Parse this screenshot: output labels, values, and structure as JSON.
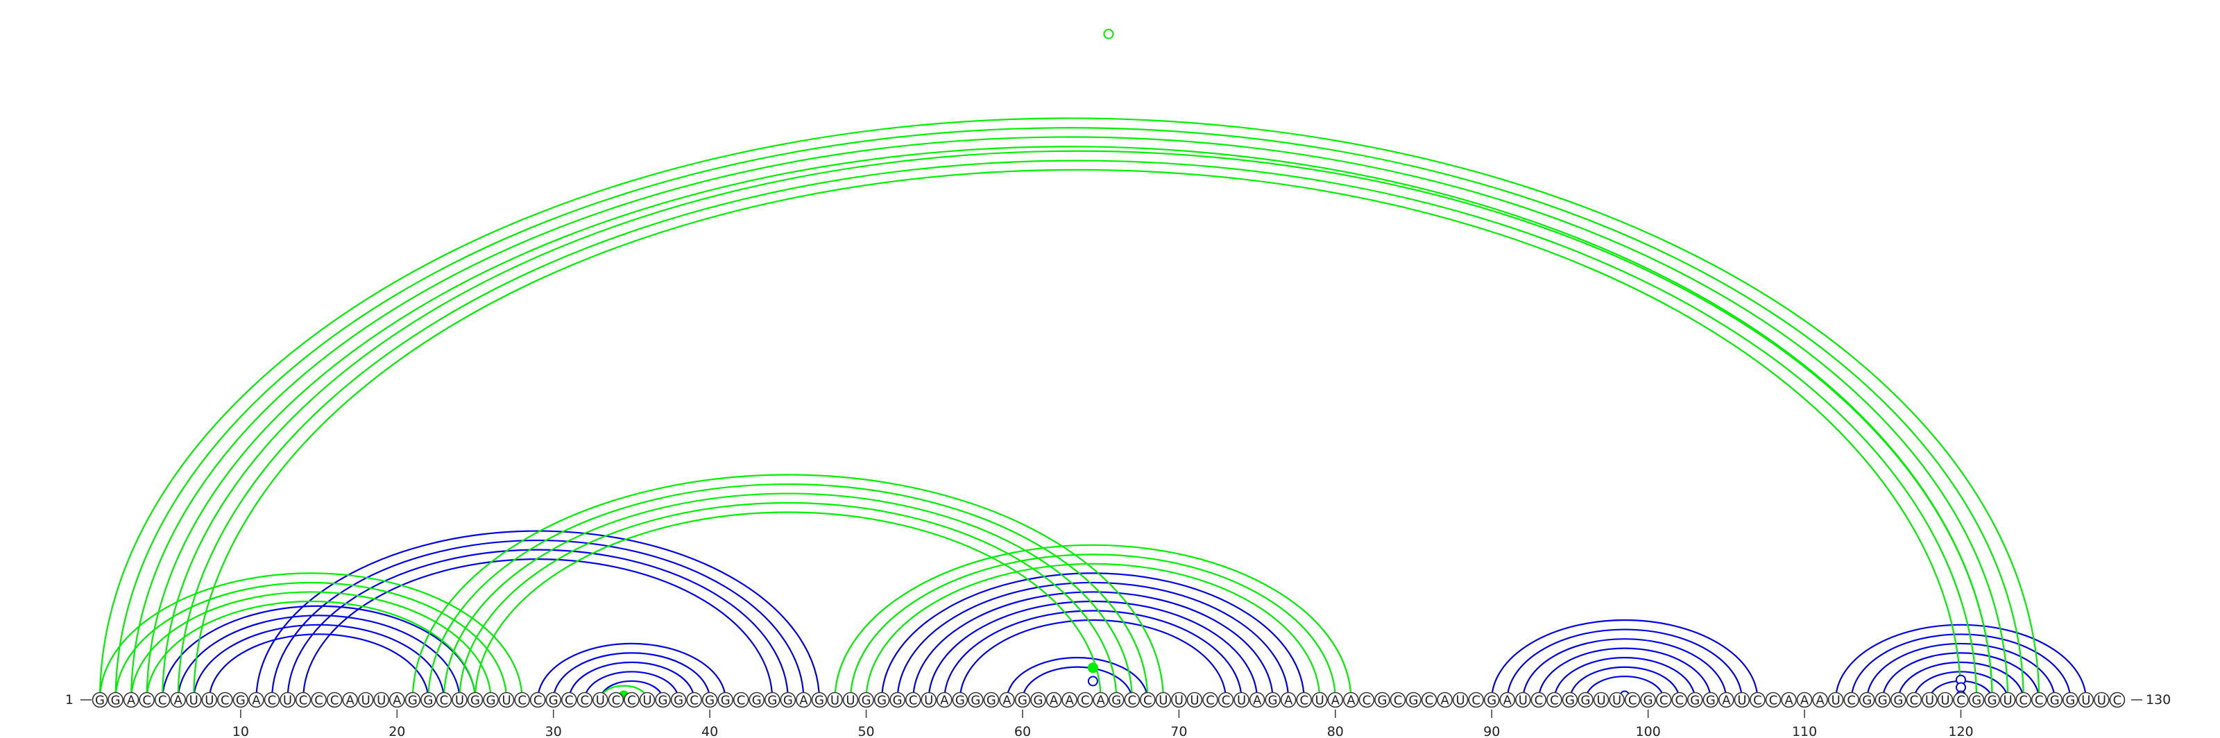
{
  "sequence": "GGACCAUUCGACUCCCAUUAGGCUGGUCCGCCUCCUGGCGGCGGGAGUUGGGCUAGGGAGGAACAGCCUUUCCUAGACUAACGCGCAUCGAUCCGGUUCGCCGGAUCCAAAUCGGGCUUCGGUCCGGUUC",
  "start_label": "1",
  "end_label": "130",
  "position_ticks": [
    10,
    20,
    30,
    40,
    50,
    60,
    70,
    80,
    90,
    100,
    110,
    120
  ],
  "colors": {
    "blue": "#0000e6",
    "green": "#00ee00",
    "backbone": "#444444"
  },
  "helices": [
    {
      "color": "blue",
      "i": 5,
      "j": 25,
      "n": 4
    },
    {
      "color": "blue",
      "i": 11,
      "j": 47,
      "n": 4
    },
    {
      "color": "blue",
      "i": 29,
      "j": 41,
      "n": 5
    },
    {
      "color": "blue",
      "i": 51,
      "j": 78,
      "n": 6
    },
    {
      "color": "blue",
      "i": 59,
      "j": 68,
      "n": 2
    },
    {
      "color": "blue",
      "i": 90,
      "j": 107,
      "n": 7
    },
    {
      "color": "blue",
      "i": 112,
      "j": 128,
      "n": 7
    },
    {
      "color": "green",
      "i": 1,
      "j": 28,
      "n": 4
    },
    {
      "color": "green",
      "i": 1,
      "j": 125,
      "n": 4
    },
    {
      "color": "green",
      "i": 5,
      "j": 122,
      "n": 3
    },
    {
      "color": "green",
      "i": 21,
      "j": 69,
      "n": 5
    },
    {
      "color": "green",
      "i": 48,
      "j": 81,
      "n": 3
    },
    {
      "color": "green",
      "i": 33,
      "j": 36,
      "n": 1
    }
  ],
  "markers": [
    {
      "color": "green",
      "pos": 65.5,
      "height": 1.0,
      "filled": false
    },
    {
      "color": "green",
      "pos": 34.5,
      "height": 0.0,
      "filled": true
    },
    {
      "color": "green",
      "pos": 64.5,
      "height": 0.67,
      "filled": true
    },
    {
      "color": "blue",
      "pos": 64.5,
      "height": 0.35,
      "filled": false
    },
    {
      "color": "blue",
      "pos": 98.5,
      "height": 0.0,
      "filled": false
    },
    {
      "color": "blue",
      "pos": 120,
      "height": 0.38,
      "filled": false
    },
    {
      "color": "blue",
      "pos": 120,
      "height": 0.2,
      "filled": false
    },
    {
      "color": "blue",
      "pos": 120,
      "height": 0.0,
      "filled": false
    }
  ]
}
